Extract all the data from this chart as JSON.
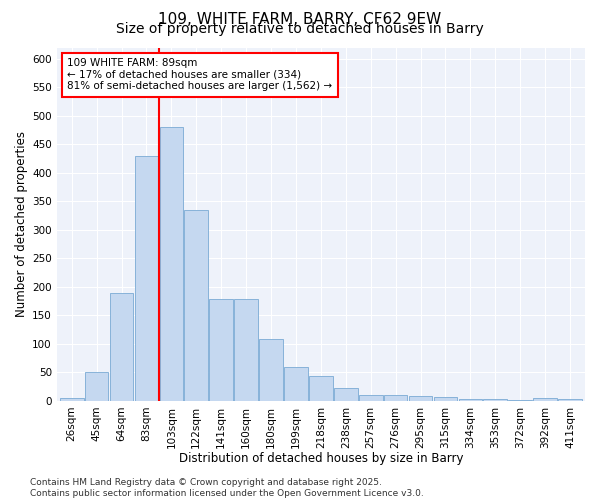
{
  "title1": "109, WHITE FARM, BARRY, CF62 9EW",
  "title2": "Size of property relative to detached houses in Barry",
  "xlabel": "Distribution of detached houses by size in Barry",
  "ylabel": "Number of detached properties",
  "categories": [
    "26sqm",
    "45sqm",
    "64sqm",
    "83sqm",
    "103sqm",
    "122sqm",
    "141sqm",
    "160sqm",
    "180sqm",
    "199sqm",
    "218sqm",
    "238sqm",
    "257sqm",
    "276sqm",
    "295sqm",
    "315sqm",
    "334sqm",
    "353sqm",
    "372sqm",
    "392sqm",
    "411sqm"
  ],
  "values": [
    5,
    50,
    190,
    430,
    480,
    335,
    178,
    178,
    108,
    60,
    43,
    23,
    11,
    11,
    8,
    7,
    4,
    4,
    2,
    5,
    3
  ],
  "bar_color": "#c5d8f0",
  "bar_edge_color": "#7aaad4",
  "vline_color": "red",
  "annotation_text": "109 WHITE FARM: 89sqm\n← 17% of detached houses are smaller (334)\n81% of semi-detached houses are larger (1,562) →",
  "annotation_box_color": "white",
  "annotation_box_edge": "red",
  "ylim": [
    0,
    620
  ],
  "yticks": [
    0,
    50,
    100,
    150,
    200,
    250,
    300,
    350,
    400,
    450,
    500,
    550,
    600
  ],
  "background_color": "#eef2fa",
  "grid_color": "white",
  "footer": "Contains HM Land Registry data © Crown copyright and database right 2025.\nContains public sector information licensed under the Open Government Licence v3.0.",
  "title_fontsize": 11,
  "subtitle_fontsize": 10,
  "axis_label_fontsize": 8.5,
  "tick_fontsize": 7.5,
  "footer_fontsize": 6.5
}
